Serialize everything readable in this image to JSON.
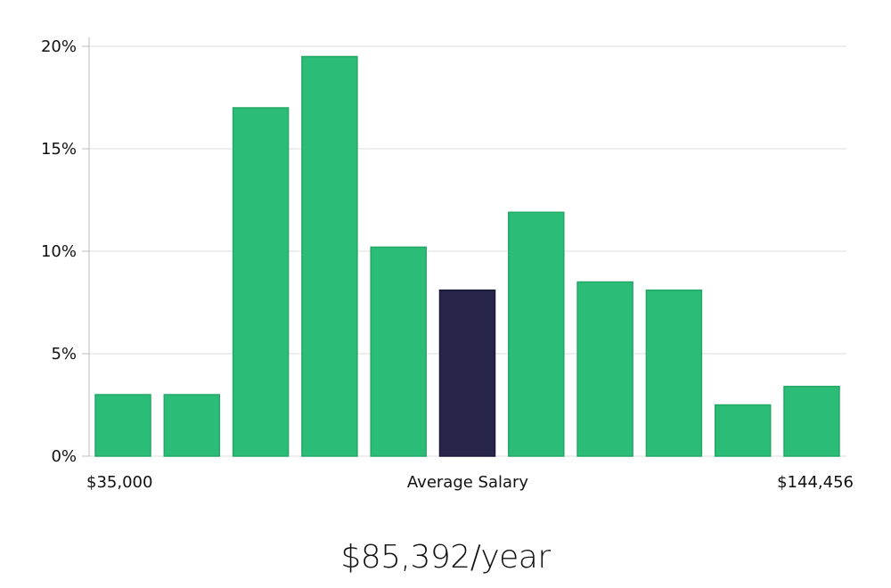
{
  "chart_data": {
    "type": "bar",
    "title": "",
    "xlabel": "",
    "ylabel": "",
    "ylim": [
      0,
      20
    ],
    "yticks": [
      0,
      5,
      10,
      15,
      20
    ],
    "ytick_labels": [
      "0%",
      "5%",
      "10%",
      "15%",
      "20%"
    ],
    "grid": true,
    "x_range_labels": {
      "min": "$35,000",
      "center": "Average Salary",
      "max": "$144,456"
    },
    "values": [
      3.0,
      3.0,
      17.0,
      19.5,
      10.2,
      8.1,
      11.9,
      8.5,
      8.1,
      2.5,
      3.4
    ],
    "highlight_index": 5,
    "colors": {
      "bar": "#2bbd77",
      "bar_stroke": "#23a866",
      "highlight": "#28254a",
      "highlight_stroke": "#1a1838",
      "grid": "#dddddd",
      "axis": "#bbbbbb"
    }
  },
  "summary": {
    "average_salary": "$85,392/year"
  }
}
